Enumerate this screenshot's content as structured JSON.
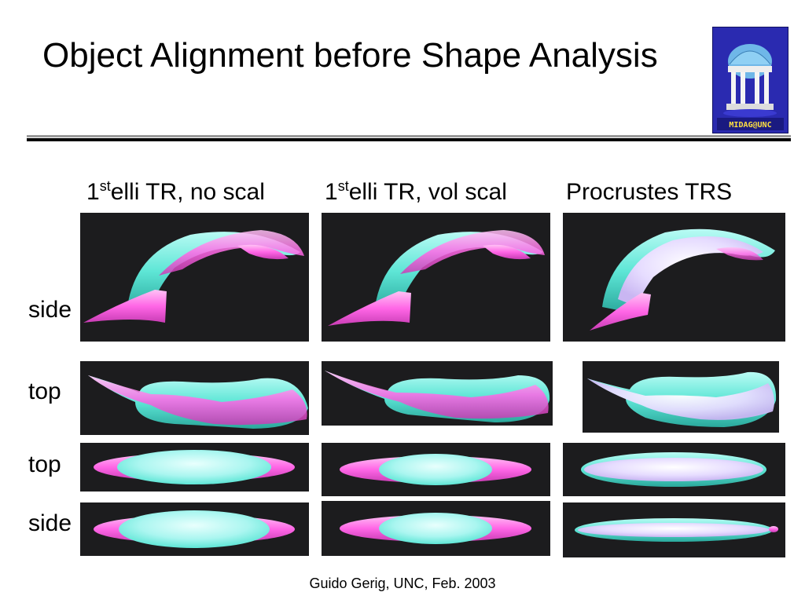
{
  "slide": {
    "title": "Object Alignment before Shape Analysis",
    "logo_text": "MIDAG@UNC",
    "columns": [
      {
        "num": "1",
        "sup": "st",
        "rest": "elli TR, no scal"
      },
      {
        "num": "1",
        "sup": "st",
        "rest": "elli TR, vol scal"
      },
      {
        "label": "Procrustes TRS"
      }
    ],
    "rows": [
      "side",
      "top",
      "top",
      "side"
    ],
    "footer": "Guido Gerig, UNC, Feb. 2003"
  },
  "colors": {
    "panel_bg": "#1c1c1e",
    "magenta": "#ff66e6",
    "cyan": "#5ee6d6",
    "lavender": "#d8c8ff",
    "logo_bg": "#2a2ab0"
  }
}
